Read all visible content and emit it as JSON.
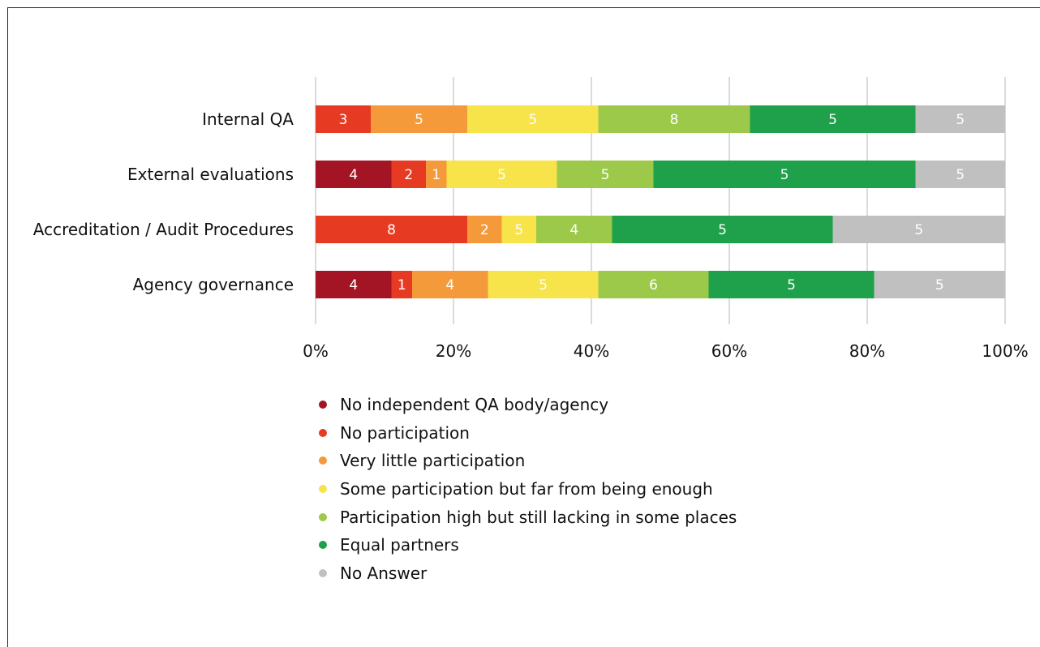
{
  "chart_data": {
    "type": "bar",
    "orientation": "horizontal",
    "stacked": true,
    "normalized_percent": true,
    "title": "",
    "xlabel": "",
    "ylabel": "",
    "xlim": [
      0,
      100
    ],
    "x_ticks": [
      "0%",
      "20%",
      "40%",
      "60%",
      "80%",
      "100%"
    ],
    "grid": true,
    "legend_position": "bottom",
    "categories": [
      "Internal QA",
      "External evaluations",
      "Accreditation / Audit Procedures",
      "Agency governance"
    ],
    "series": [
      {
        "name": "No independent QA body/agency",
        "color": "#a31424",
        "values": [
          null,
          4,
          null,
          4
        ],
        "percent": [
          0,
          11,
          0,
          11
        ]
      },
      {
        "name": "No participation",
        "color": "#e63b22",
        "values": [
          3,
          2,
          8,
          1
        ],
        "percent": [
          8,
          5,
          22,
          3
        ]
      },
      {
        "name": "Very little participation",
        "color": "#f49a3a",
        "values": [
          5,
          1,
          2,
          4
        ],
        "percent": [
          14,
          3,
          5,
          11
        ]
      },
      {
        "name": "Some participation but far from being enough",
        "color": "#f7e34a",
        "values": [
          5,
          5,
          5,
          5
        ],
        "percent": [
          19,
          16,
          5,
          16
        ]
      },
      {
        "name": "Participation high but still lacking in some places",
        "color": "#9cc94a",
        "values": [
          8,
          5,
          4,
          6
        ],
        "percent": [
          22,
          14,
          11,
          16
        ]
      },
      {
        "name": "Equal partners",
        "color": "#1fa04a",
        "values": [
          5,
          5,
          5,
          5
        ],
        "percent": [
          24,
          38,
          32,
          24
        ]
      },
      {
        "name": "No Answer",
        "color": "#c0c0c0",
        "values": [
          5,
          5,
          5,
          5
        ],
        "percent": [
          13,
          13,
          25,
          19
        ]
      }
    ]
  }
}
